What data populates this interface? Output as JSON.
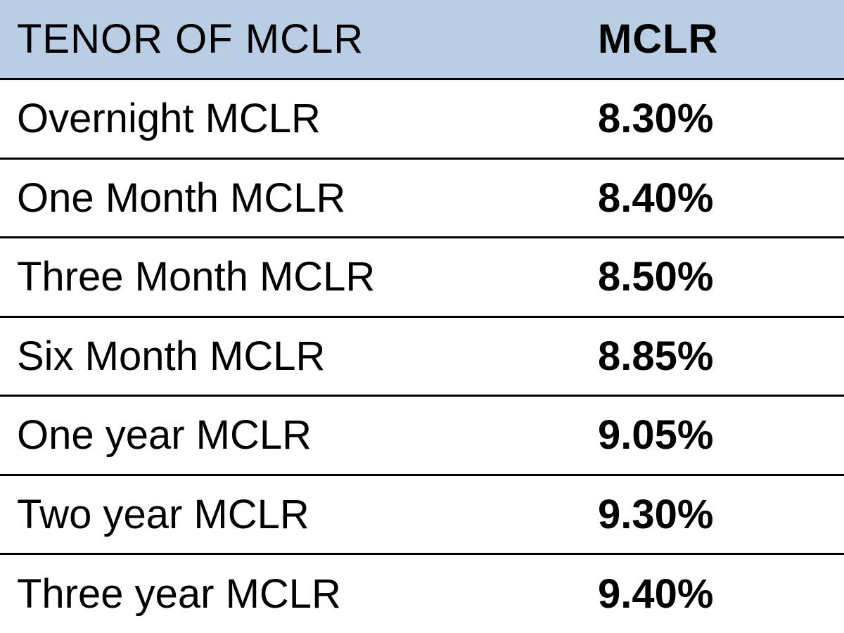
{
  "table": {
    "type": "table",
    "header_bg": "#b9cde5",
    "border_color": "#000000",
    "border_width": 3,
    "background_color": "#ffffff",
    "text_color": "#000000",
    "header_fontsize": 58,
    "body_fontsize": 58,
    "columns": [
      {
        "label": "TENOR OF MCLR",
        "width_pct": 70,
        "font_weight": 400
      },
      {
        "label": "MCLR",
        "width_pct": 30,
        "font_weight": 700
      }
    ],
    "rows": [
      {
        "tenor": "Overnight MCLR",
        "rate": "8.30%"
      },
      {
        "tenor": "One Month MCLR",
        "rate": "8.40%"
      },
      {
        "tenor": "Three Month MCLR",
        "rate": "8.50%"
      },
      {
        "tenor": "Six Month MCLR",
        "rate": "8.85%"
      },
      {
        "tenor": "One year MCLR",
        "rate": "9.05%"
      },
      {
        "tenor": "Two year MCLR",
        "rate": "9.30%"
      },
      {
        "tenor": "Three year MCLR",
        "rate": "9.40%"
      }
    ]
  }
}
